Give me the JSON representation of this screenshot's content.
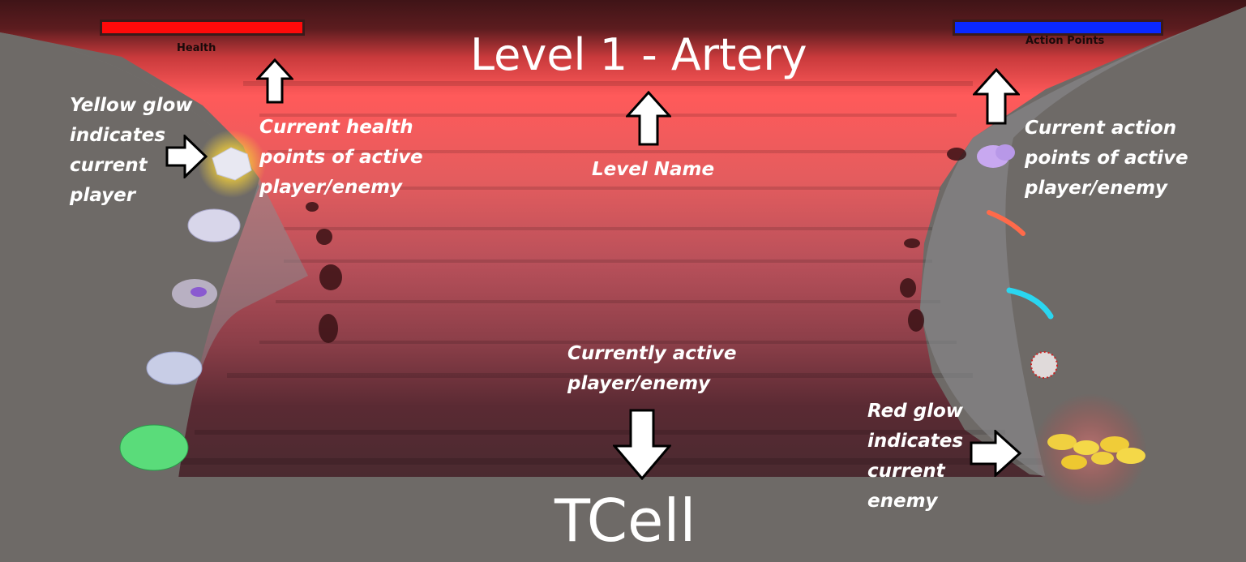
{
  "level_name": "Level 1 - Artery",
  "active_unit_name": "TCell",
  "hud": {
    "health": {
      "label": "Health",
      "value_fraction": 1.0,
      "color": "#ff0a0a"
    },
    "action_points": {
      "label": "Action Points",
      "value_fraction": 1.0,
      "color": "#0a28ff"
    }
  },
  "annotations": {
    "yellow_glow": [
      "Yellow glow",
      "indicates",
      "current",
      "player"
    ],
    "health_points": [
      "Current health",
      "points of active",
      "player/enemy"
    ],
    "level_name": [
      "Level Name"
    ],
    "action_points": [
      "Current action",
      "points of active",
      "player/enemy"
    ],
    "active_unit": [
      "Currently active",
      "player/enemy"
    ],
    "red_glow": [
      "Red glow",
      "indicates",
      "current",
      "enemy"
    ]
  },
  "colors": {
    "artery_top": "#3f1417",
    "artery_bright": "#ff5a5a",
    "artery_mid": "#d75a5c",
    "artery_floor": "#4a2a30",
    "wall_gray": "#6e6a67",
    "annotation_text": "#ffffff"
  }
}
